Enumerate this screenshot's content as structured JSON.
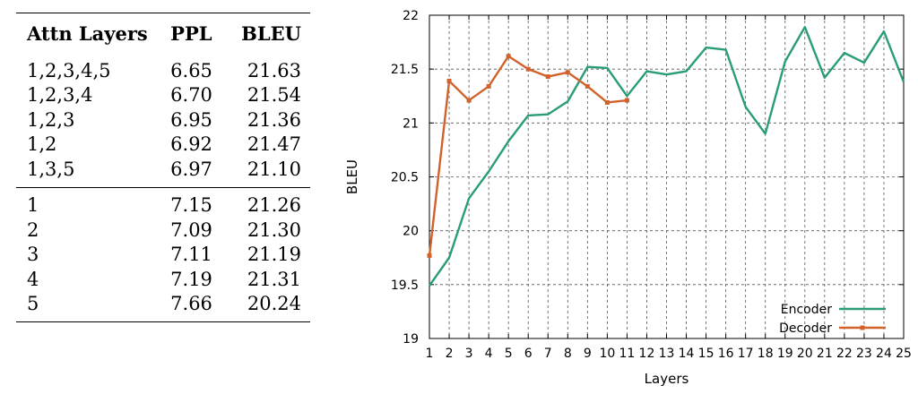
{
  "table": {
    "headers": [
      "Attn Layers",
      "PPL",
      "BLEU"
    ],
    "group1": [
      {
        "layers": "1,2,3,4,5",
        "ppl": "6.65",
        "bleu": "21.63"
      },
      {
        "layers": "1,2,3,4",
        "ppl": "6.70",
        "bleu": "21.54"
      },
      {
        "layers": "1,2,3",
        "ppl": "6.95",
        "bleu": "21.36"
      },
      {
        "layers": "1,2",
        "ppl": "6.92",
        "bleu": "21.47"
      },
      {
        "layers": "1,3,5",
        "ppl": "6.97",
        "bleu": "21.10"
      }
    ],
    "group2": [
      {
        "layers": "1",
        "ppl": "7.15",
        "bleu": "21.26"
      },
      {
        "layers": "2",
        "ppl": "7.09",
        "bleu": "21.30"
      },
      {
        "layers": "3",
        "ppl": "7.11",
        "bleu": "21.19"
      },
      {
        "layers": "4",
        "ppl": "7.19",
        "bleu": "21.31"
      },
      {
        "layers": "5",
        "ppl": "7.66",
        "bleu": "20.24"
      }
    ]
  },
  "chart_data": {
    "type": "line",
    "xlabel": "Layers",
    "ylabel": "BLEU",
    "xlim": [
      1,
      25
    ],
    "ylim": [
      19,
      22
    ],
    "x_ticks": [
      1,
      2,
      3,
      4,
      5,
      6,
      7,
      8,
      9,
      10,
      11,
      12,
      13,
      14,
      15,
      16,
      17,
      18,
      19,
      20,
      21,
      22,
      23,
      24,
      25
    ],
    "y_ticks": [
      19,
      19.5,
      20,
      20.5,
      21,
      21.5,
      22
    ],
    "y_tick_labels": [
      "19",
      "19.5",
      "20",
      "20.5",
      "21",
      "21.5",
      "22"
    ],
    "grid": true,
    "legend_position": "bottom-right",
    "series": [
      {
        "name": "Encoder",
        "color": "#2a9d74",
        "markers": false,
        "x": [
          1,
          2,
          3,
          4,
          5,
          6,
          7,
          8,
          9,
          10,
          11,
          12,
          13,
          14,
          15,
          16,
          17,
          18,
          19,
          20,
          21,
          22,
          23,
          24,
          25
        ],
        "y": [
          19.49,
          19.75,
          20.3,
          20.55,
          20.83,
          21.07,
          21.08,
          21.2,
          21.52,
          21.51,
          21.25,
          21.48,
          21.45,
          21.48,
          21.7,
          21.68,
          21.15,
          20.9,
          21.57,
          21.89,
          21.42,
          21.65,
          21.56,
          21.85,
          21.38
        ]
      },
      {
        "name": "Decoder",
        "color": "#d2622a",
        "markers": true,
        "x": [
          1,
          2,
          3,
          4,
          5,
          6,
          7,
          8,
          9,
          10,
          11
        ],
        "y": [
          19.77,
          21.39,
          21.21,
          21.34,
          21.62,
          21.5,
          21.43,
          21.47,
          21.34,
          21.19,
          21.21
        ]
      }
    ]
  }
}
